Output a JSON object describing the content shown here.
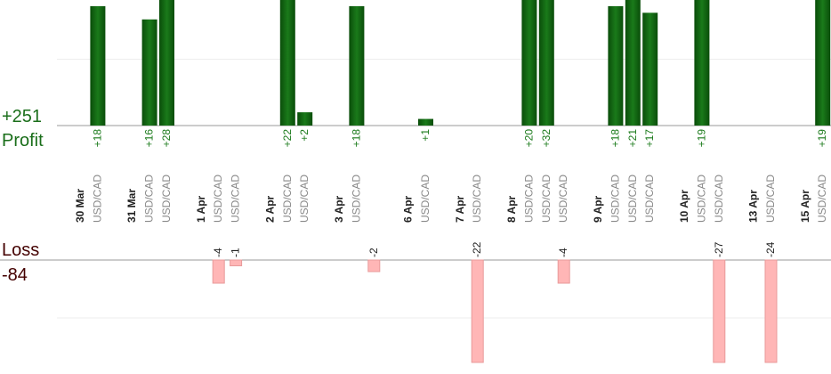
{
  "summary": {
    "profit_total": "+251",
    "profit_label": "Profit",
    "loss_label": "Loss",
    "loss_total": "-84"
  },
  "profit_axis": {
    "yticks": [
      10
    ]
  },
  "loss_axis": {
    "yticks": [
      10
    ]
  },
  "days": [
    {
      "date": "30 Mar",
      "trades": [
        {
          "pair": "USD/CAD",
          "value": 18,
          "value_label": "+18"
        }
      ]
    },
    {
      "date": "31 Mar",
      "trades": [
        {
          "pair": "USD/CAD",
          "value": 16,
          "value_label": "+16"
        },
        {
          "pair": "USD/CAD",
          "value": 28,
          "value_label": "+28"
        }
      ]
    },
    {
      "date": "1 Apr",
      "trades": [
        {
          "pair": "USD/CAD",
          "value": -4
        },
        {
          "pair": "USD/CAD",
          "value": -1
        }
      ]
    },
    {
      "date": "2 Apr",
      "trades": [
        {
          "pair": "USD/CAD",
          "value": 22,
          "value_label": "+22"
        },
        {
          "pair": "USD/CAD",
          "value": 2,
          "value_label": "+2"
        }
      ]
    },
    {
      "date": "3 Apr",
      "trades": [
        {
          "pair": "USD/CAD",
          "value": 18,
          "value_label": "+18"
        },
        {
          "pair": null,
          "value": -2
        }
      ]
    },
    {
      "date": "6 Apr",
      "trades": [
        {
          "pair": "USD/CAD",
          "value": 1,
          "value_label": "+1"
        }
      ]
    },
    {
      "date": "7 Apr",
      "trades": [
        {
          "pair": "USD/CAD",
          "value": -22
        }
      ]
    },
    {
      "date": "8 Apr",
      "trades": [
        {
          "pair": "USD/CAD",
          "value": 20,
          "value_label": "+20"
        },
        {
          "pair": "USD/CAD",
          "value": 32,
          "value_label": "+32"
        },
        {
          "pair": "USD/CAD",
          "value": -4
        }
      ]
    },
    {
      "date": "9 Apr",
      "trades": [
        {
          "pair": "USD/CAD",
          "value": 18,
          "value_label": "+18"
        },
        {
          "pair": "USD/CAD",
          "value": 21,
          "value_label": "+21"
        },
        {
          "pair": "USD/CAD",
          "value": 17,
          "value_label": "+17"
        }
      ]
    },
    {
      "date": "10 Apr",
      "trades": [
        {
          "pair": "USD/CAD",
          "value": 19,
          "value_label": "+19"
        },
        {
          "pair": "USD/CAD",
          "value": -27
        }
      ]
    },
    {
      "date": "13 Apr",
      "trades": [
        {
          "pair": "USD/CAD",
          "value": -24
        }
      ]
    },
    {
      "date": "15 Apr",
      "trades": [
        {
          "pair": "USD/CAD",
          "value": 19,
          "value_label": "+19"
        }
      ]
    }
  ]
}
